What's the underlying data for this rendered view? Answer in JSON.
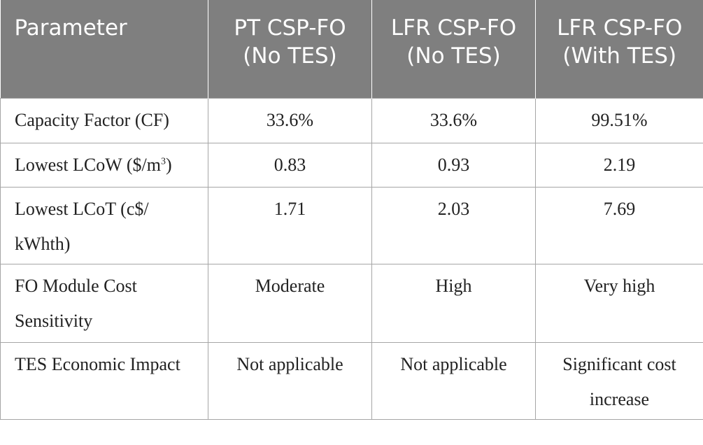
{
  "table": {
    "headers": [
      "Parameter",
      "PT CSP-FO (No TES)",
      "LFR CSP-FO (No TES)",
      "LFR CSP-FO (With TES)"
    ],
    "rows": [
      {
        "parameter": "Capacity Factor (CF)",
        "values": [
          "33.6%",
          "33.6%",
          "99.51%"
        ]
      },
      {
        "parameter_pre": "Lowest LCoW ($/m",
        "parameter_sup": "3",
        "parameter_post": ")",
        "values": [
          "0.83",
          "0.93",
          "2.19"
        ]
      },
      {
        "parameter": "Lowest LCoT (c$/ kWhth)",
        "values": [
          "1.71",
          "2.03",
          "7.69"
        ]
      },
      {
        "parameter": "FO Module Cost Sensitivity",
        "values": [
          "Moderate",
          "High",
          "Very high"
        ]
      },
      {
        "parameter": "TES Economic Impact",
        "values": [
          "Not applicable",
          "Not applicable",
          "Significant cost increase"
        ]
      }
    ]
  }
}
